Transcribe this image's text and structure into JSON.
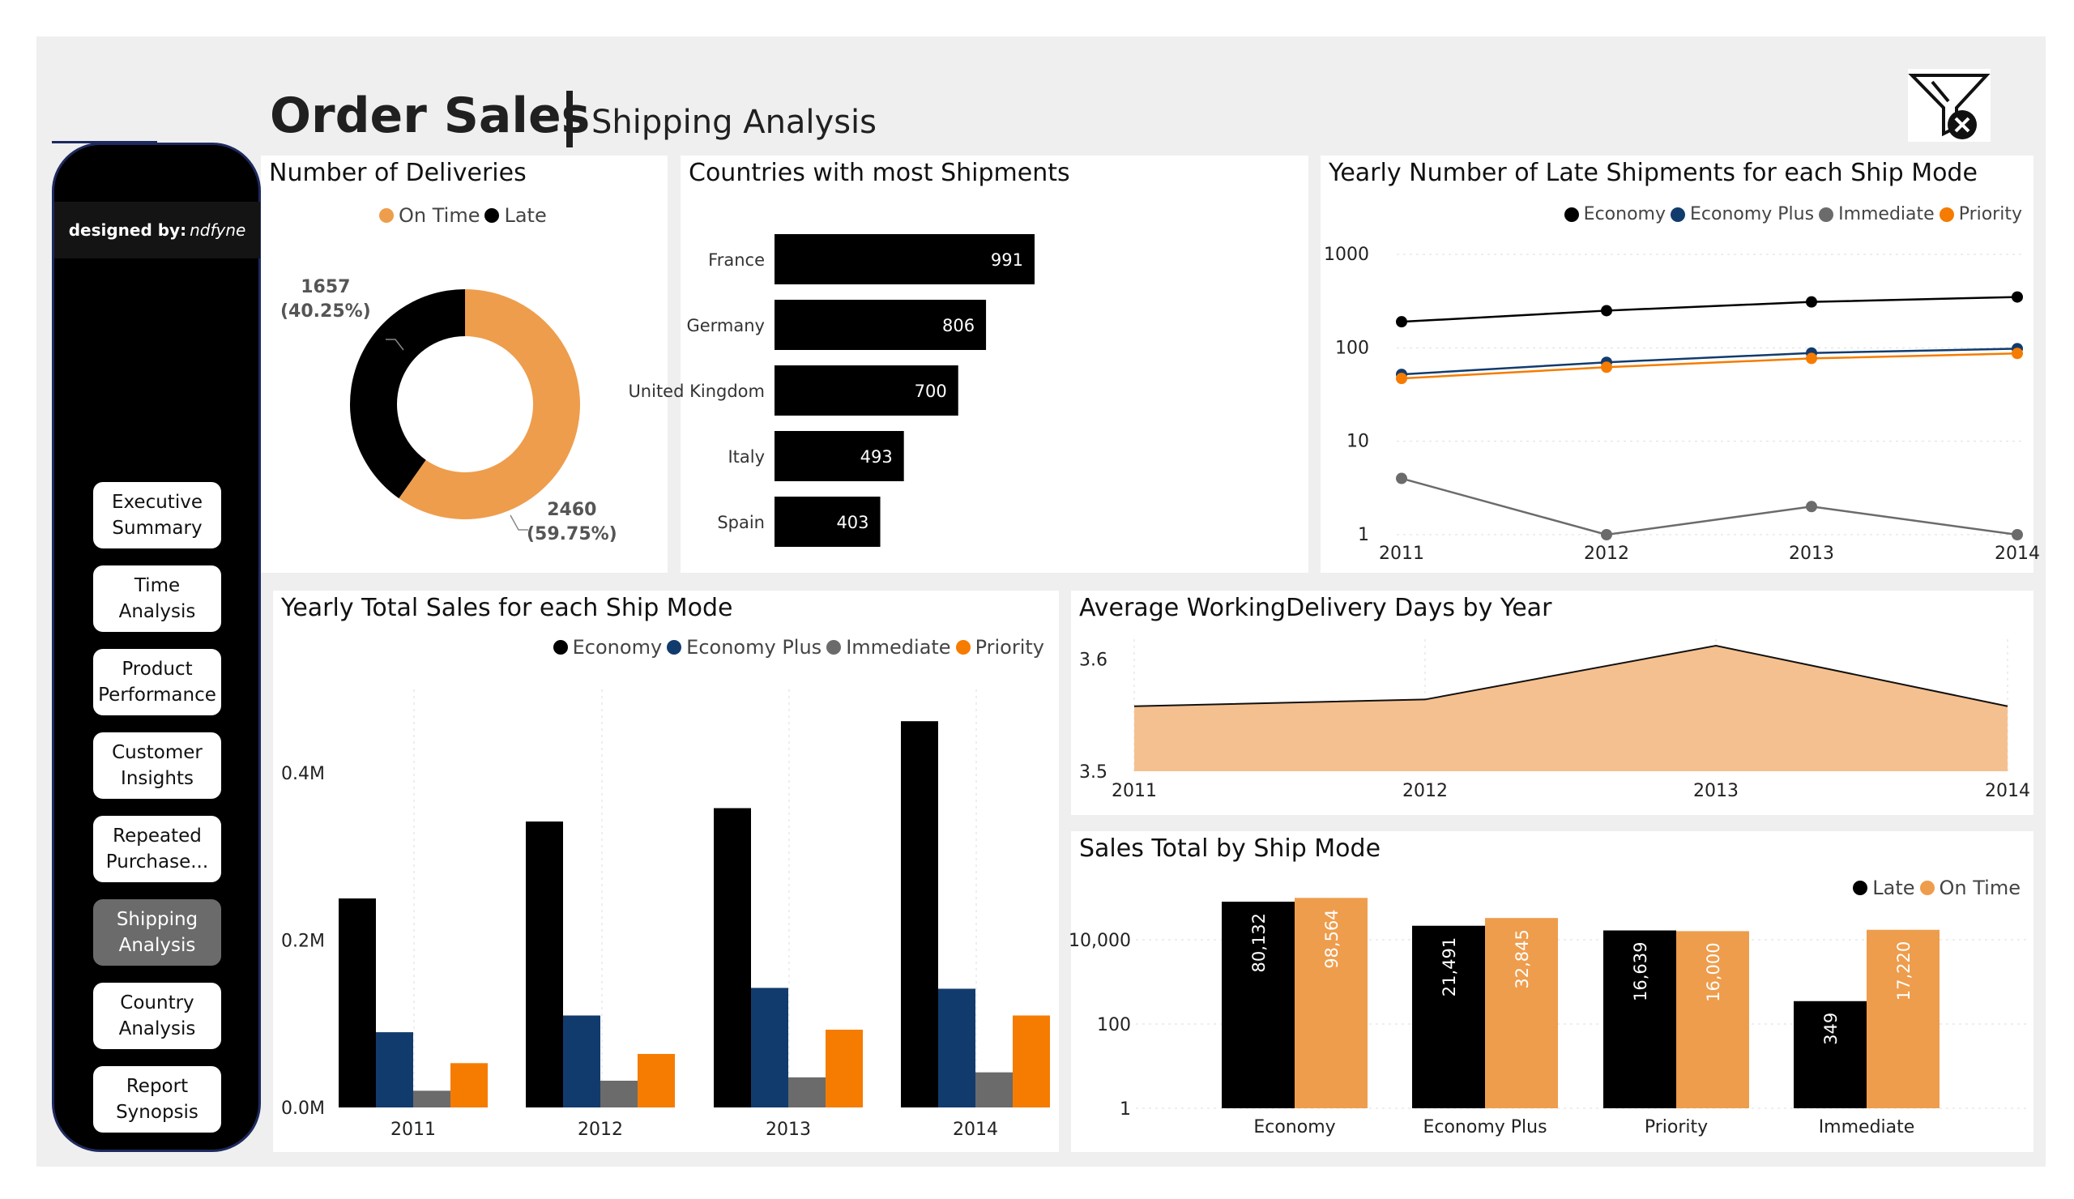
{
  "header": {
    "title": "Order Sales",
    "subtitle": "Shipping Analysis",
    "clear_filters_icon": "filter-clear-icon"
  },
  "sidebar": {
    "designed_by_label": "designed by:",
    "designed_by_name": "ndfyne",
    "items": [
      {
        "label": "Executive\nSummary",
        "active": false
      },
      {
        "label": "Time\nAnalysis",
        "active": false
      },
      {
        "label": "Product\nPerformance",
        "active": false
      },
      {
        "label": "Customer\nInsights",
        "active": false
      },
      {
        "label": "Repeated\nPurchase...",
        "active": false
      },
      {
        "label": "Shipping\nAnalysis",
        "active": true
      },
      {
        "label": "Country\nAnalysis",
        "active": false
      },
      {
        "label": "Report\nSynopsis",
        "active": false
      }
    ]
  },
  "colors": {
    "on_time": "#ee9d4d",
    "late": "#000000",
    "economy": "#000000",
    "economy_plus": "#123b6d",
    "immediate": "#6b6b6b",
    "priority": "#f57c00",
    "area_fill": "#f5c08f"
  },
  "chart_data": [
    {
      "id": "deliveries",
      "type": "pie",
      "title": "Number of Deliveries",
      "legend": [
        "On Time",
        "Late"
      ],
      "slices": [
        {
          "name": "On Time",
          "value": 2460,
          "pct": "59.75%",
          "label": "2460",
          "pct_label": "(59.75%)"
        },
        {
          "name": "Late",
          "value": 1657,
          "pct": "40.25%",
          "label": "1657",
          "pct_label": "(40.25%)"
        }
      ]
    },
    {
      "id": "countries",
      "type": "bar",
      "title": "Countries with most Shipments",
      "categories": [
        "France",
        "Germany",
        "United Kingdom",
        "Italy",
        "Spain"
      ],
      "values": [
        991,
        806,
        700,
        493,
        403
      ],
      "value_labels": [
        "991",
        "806",
        "700",
        "493",
        "403"
      ]
    },
    {
      "id": "late_by_mode",
      "type": "line",
      "title": "Yearly Number of Late Shipments for each Ship Mode",
      "scale": "log",
      "x": [
        "2011",
        "2012",
        "2013",
        "2014"
      ],
      "y_ticks": [
        "1000",
        "100",
        "10",
        "1"
      ],
      "ylim": [
        1,
        1000
      ],
      "series": [
        {
          "name": "Economy",
          "values": [
            190,
            250,
            310,
            350
          ]
        },
        {
          "name": "Economy Plus",
          "values": [
            52,
            70,
            88,
            98
          ]
        },
        {
          "name": "Immediate",
          "values": [
            4,
            1,
            2,
            1
          ]
        },
        {
          "name": "Priority",
          "values": [
            47,
            62,
            77,
            87
          ]
        }
      ]
    },
    {
      "id": "sales_by_mode",
      "type": "bar",
      "title": "Yearly Total Sales for each Ship Mode",
      "categories": [
        "2011",
        "2012",
        "2013",
        "2014"
      ],
      "y_ticks": [
        "0.4M",
        "0.2M",
        "0.0M"
      ],
      "ylim": [
        0,
        0.5
      ],
      "series": [
        {
          "name": "Economy",
          "values": [
            0.25,
            0.342,
            0.358,
            0.462
          ]
        },
        {
          "name": "Economy Plus",
          "values": [
            0.09,
            0.11,
            0.143,
            0.142
          ]
        },
        {
          "name": "Immediate",
          "values": [
            0.02,
            0.032,
            0.036,
            0.042
          ]
        },
        {
          "name": "Priority",
          "values": [
            0.053,
            0.064,
            0.093,
            0.11
          ]
        }
      ]
    },
    {
      "id": "avg_days",
      "type": "area",
      "title": "Average WorkingDelivery Days by Year",
      "x": [
        "2011",
        "2012",
        "2013",
        "2014"
      ],
      "values": [
        3.558,
        3.564,
        3.612,
        3.558
      ],
      "y_ticks": [
        "3.6",
        "3.5"
      ],
      "ylim": [
        3.5,
        3.625
      ]
    },
    {
      "id": "sales_total",
      "type": "bar",
      "title": "Sales Total by Ship Mode",
      "scale": "log",
      "categories": [
        "Economy",
        "Economy Plus",
        "Priority",
        "Immediate"
      ],
      "y_ticks": [
        "10,000",
        "100",
        "1"
      ],
      "legend": [
        "Late",
        "On Time"
      ],
      "series": [
        {
          "name": "Late",
          "values": [
            80132,
            21491,
            16639,
            349
          ],
          "labels": [
            "80,132",
            "21,491",
            "16,639",
            "349"
          ]
        },
        {
          "name": "On Time",
          "values": [
            98564,
            32845,
            16000,
            17220
          ],
          "labels": [
            "98,564",
            "32,845",
            "16,000",
            "17,220"
          ]
        }
      ]
    }
  ]
}
